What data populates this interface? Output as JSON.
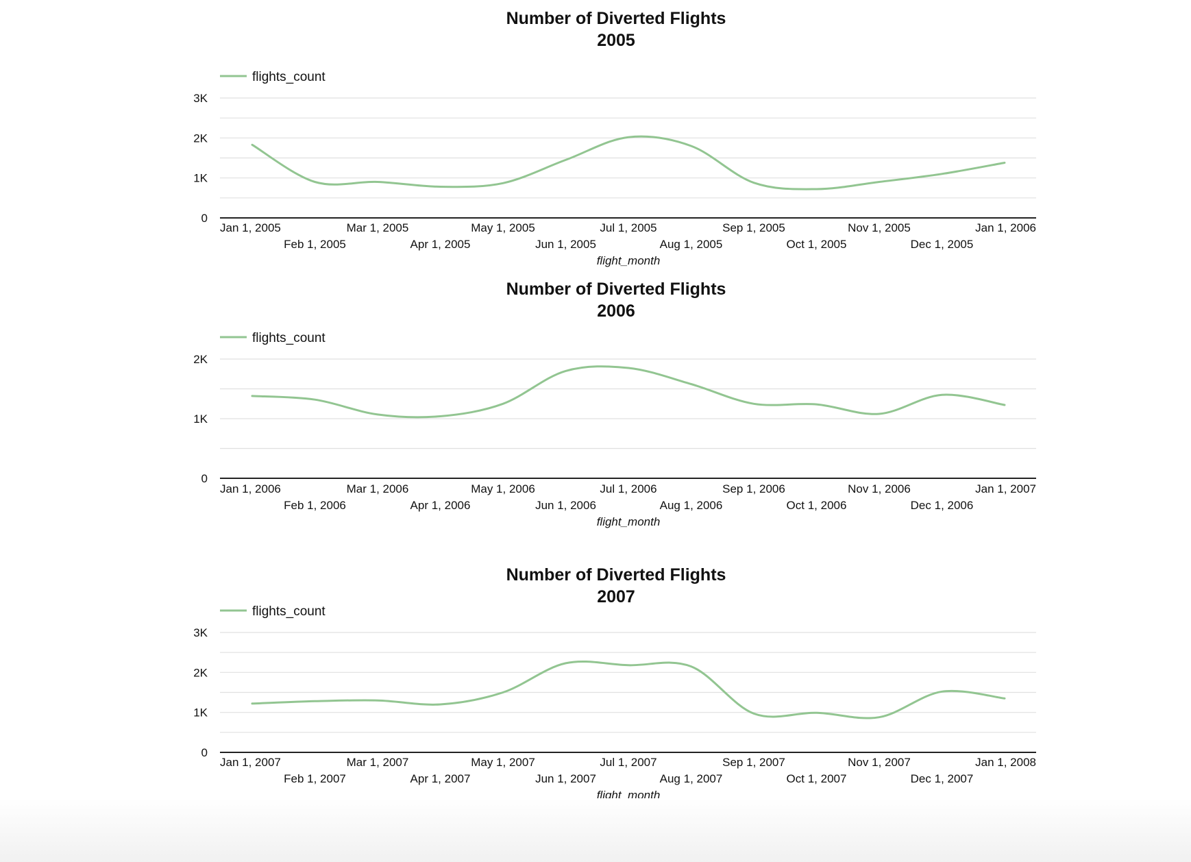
{
  "colors": {
    "line": "#92c591",
    "grid": "#e0e0e0",
    "axis": "#222222",
    "text": "#111111"
  },
  "chart_data": [
    {
      "type": "line",
      "title": "Number of Diverted Flights",
      "subtitle": "2005",
      "xlabel": "flight_month",
      "ylabel": "",
      "legend": "top-left",
      "grid": true,
      "ylim": [
        0,
        3000
      ],
      "yticks": [
        "0",
        "1K",
        "2K",
        "3K"
      ],
      "x": [
        "Jan 1, 2005",
        "Feb 1, 2005",
        "Mar 1, 2005",
        "Apr 1, 2005",
        "May 1, 2005",
        "Jun 1, 2005",
        "Jul 1, 2005",
        "Aug 1, 2005",
        "Sep 1, 2005",
        "Oct 1, 2005",
        "Nov 1, 2005",
        "Dec 1, 2005",
        "Jan 1, 2006"
      ],
      "series": [
        {
          "name": "flights_count",
          "values": [
            1830,
            900,
            900,
            780,
            870,
            1450,
            2020,
            1800,
            880,
            720,
            900,
            1100,
            1380
          ]
        }
      ]
    },
    {
      "type": "line",
      "title": "Number of Diverted Flights",
      "subtitle": "2006",
      "xlabel": "flight_month",
      "ylabel": "",
      "legend": "top-left",
      "grid": true,
      "ylim": [
        0,
        2000
      ],
      "yticks": [
        "0",
        "1K",
        "2K"
      ],
      "x": [
        "Jan 1, 2006",
        "Feb 1, 2006",
        "Mar 1, 2006",
        "Apr 1, 2006",
        "May 1, 2006",
        "Jun 1, 2006",
        "Jul 1, 2006",
        "Aug 1, 2006",
        "Sep 1, 2006",
        "Oct 1, 2006",
        "Nov 1, 2006",
        "Dec 1, 2006",
        "Jan 1, 2007"
      ],
      "series": [
        {
          "name": "flights_count",
          "values": [
            1380,
            1320,
            1070,
            1040,
            1250,
            1800,
            1850,
            1580,
            1250,
            1240,
            1080,
            1400,
            1230
          ]
        }
      ]
    },
    {
      "type": "line",
      "title": "Number of Diverted Flights",
      "subtitle": "2007",
      "xlabel": "flight_month",
      "ylabel": "",
      "legend": "top-left",
      "grid": true,
      "ylim": [
        0,
        3000
      ],
      "yticks": [
        "0",
        "1K",
        "2K",
        "3K"
      ],
      "x": [
        "Jan 1, 2007",
        "Feb 1, 2007",
        "Mar 1, 2007",
        "Apr 1, 2007",
        "May 1, 2007",
        "Jun 1, 2007",
        "Jul 1, 2007",
        "Aug 1, 2007",
        "Sep 1, 2007",
        "Oct 1, 2007",
        "Nov 1, 2007",
        "Dec 1, 2007",
        "Jan 1, 2008"
      ],
      "series": [
        {
          "name": "flights_count",
          "values": [
            1220,
            1280,
            1300,
            1200,
            1500,
            2230,
            2180,
            2150,
            970,
            990,
            880,
            1520,
            1350
          ]
        }
      ]
    }
  ]
}
